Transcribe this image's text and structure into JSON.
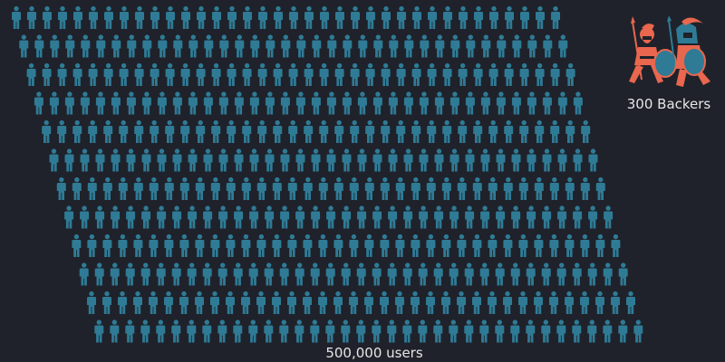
{
  "crowd": {
    "caption": "500,000 users",
    "person_icon": "person-icon",
    "color": "#2f7b96",
    "rows": 12,
    "per_row": 36
  },
  "backers": {
    "caption": "300 Backers",
    "icon": "spartan-warriors-icon",
    "color": "#e8674e",
    "shield_color": "#2f7b96"
  },
  "background": "#1f222a"
}
